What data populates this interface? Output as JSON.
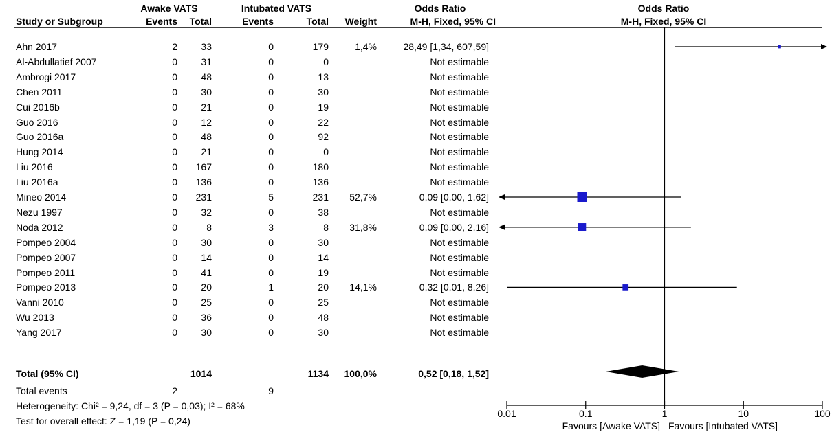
{
  "headers": {
    "group1": "Awake VATS",
    "group2": "Intubated VATS",
    "or_title_left": "Odds Ratio",
    "or_title_right": "Odds Ratio",
    "study_col": "Study or Subgroup",
    "events1": "Events",
    "total1": "Total",
    "events2": "Events",
    "total2": "Total",
    "weight": "Weight",
    "method_left": "M-H, Fixed, 95% CI",
    "method_right": "M-H, Fixed, 95% CI"
  },
  "studies": [
    {
      "study": "Ahn 2017",
      "e1": "2",
      "t1": "33",
      "e2": "0",
      "t2": "179",
      "weight": "1,4%",
      "ci": "28,49 [1,34, 607,59]"
    },
    {
      "study": "Al-Abdullatief 2007",
      "e1": "0",
      "t1": "31",
      "e2": "0",
      "t2": "0",
      "weight": "",
      "ci": "Not estimable"
    },
    {
      "study": "Ambrogi 2017",
      "e1": "0",
      "t1": "48",
      "e2": "0",
      "t2": "13",
      "weight": "",
      "ci": "Not estimable"
    },
    {
      "study": "Chen 2011",
      "e1": "0",
      "t1": "30",
      "e2": "0",
      "t2": "30",
      "weight": "",
      "ci": "Not estimable"
    },
    {
      "study": "Cui 2016b",
      "e1": "0",
      "t1": "21",
      "e2": "0",
      "t2": "19",
      "weight": "",
      "ci": "Not estimable"
    },
    {
      "study": "Guo 2016",
      "e1": "0",
      "t1": "12",
      "e2": "0",
      "t2": "22",
      "weight": "",
      "ci": "Not estimable"
    },
    {
      "study": "Guo 2016a",
      "e1": "0",
      "t1": "48",
      "e2": "0",
      "t2": "92",
      "weight": "",
      "ci": "Not estimable"
    },
    {
      "study": "Hung 2014",
      "e1": "0",
      "t1": "21",
      "e2": "0",
      "t2": "0",
      "weight": "",
      "ci": "Not estimable"
    },
    {
      "study": "Liu 2016",
      "e1": "0",
      "t1": "167",
      "e2": "0",
      "t2": "180",
      "weight": "",
      "ci": "Not estimable"
    },
    {
      "study": "Liu 2016a",
      "e1": "0",
      "t1": "136",
      "e2": "0",
      "t2": "136",
      "weight": "",
      "ci": "Not estimable"
    },
    {
      "study": "Mineo 2014",
      "e1": "0",
      "t1": "231",
      "e2": "5",
      "t2": "231",
      "weight": "52,7%",
      "ci": "0,09 [0,00, 1,62]"
    },
    {
      "study": "Nezu 1997",
      "e1": "0",
      "t1": "32",
      "e2": "0",
      "t2": "38",
      "weight": "",
      "ci": "Not estimable"
    },
    {
      "study": "Noda 2012",
      "e1": "0",
      "t1": "8",
      "e2": "3",
      "t2": "8",
      "weight": "31,8%",
      "ci": "0,09 [0,00, 2,16]"
    },
    {
      "study": "Pompeo 2004",
      "e1": "0",
      "t1": "30",
      "e2": "0",
      "t2": "30",
      "weight": "",
      "ci": "Not estimable"
    },
    {
      "study": "Pompeo 2007",
      "e1": "0",
      "t1": "14",
      "e2": "0",
      "t2": "14",
      "weight": "",
      "ci": "Not estimable"
    },
    {
      "study": "Pompeo 2011",
      "e1": "0",
      "t1": "41",
      "e2": "0",
      "t2": "19",
      "weight": "",
      "ci": "Not estimable"
    },
    {
      "study": "Pompeo 2013",
      "e1": "0",
      "t1": "20",
      "e2": "1",
      "t2": "20",
      "weight": "14,1%",
      "ci": "0,32 [0,01, 8,26]"
    },
    {
      "study": "Vanni 2010",
      "e1": "0",
      "t1": "25",
      "e2": "0",
      "t2": "25",
      "weight": "",
      "ci": "Not estimable"
    },
    {
      "study": "Wu 2013",
      "e1": "0",
      "t1": "36",
      "e2": "0",
      "t2": "48",
      "weight": "",
      "ci": "Not estimable"
    },
    {
      "study": "Yang 2017",
      "e1": "0",
      "t1": "30",
      "e2": "0",
      "t2": "30",
      "weight": "",
      "ci": "Not estimable"
    }
  ],
  "total": {
    "label": "Total (95% CI)",
    "t1": "1014",
    "t2": "1134",
    "weight": "100,0%",
    "ci": "0,52 [0,18, 1,52]"
  },
  "total_events": {
    "label": "Total events",
    "e1": "2",
    "e2": "9"
  },
  "heterogeneity": "Heterogeneity: Chi² = 9,24, df = 3 (P = 0,03); I² = 68%",
  "overall_effect": "Test for overall effect: Z = 1,19 (P = 0,24)",
  "axis": {
    "ticks": [
      "0.01",
      "0.1",
      "1",
      "10",
      "100"
    ],
    "favours_left": "Favours [Awake VATS]",
    "favours_right": "Favours [Intubated VATS]"
  },
  "colors": {
    "marker": "#1a1acc",
    "diamond": "#000000",
    "line": "#000000"
  },
  "chart_data": {
    "type": "forest",
    "scale": "log",
    "xlim": [
      0.01,
      100
    ],
    "reference_line": 1,
    "points": [
      {
        "study": "Ahn 2017",
        "or": 28.49,
        "lower": 1.34,
        "upper": 607.59,
        "weight": 1.4
      },
      {
        "study": "Mineo 2014",
        "or": 0.09,
        "lower": 0.0,
        "upper": 1.62,
        "weight": 52.7
      },
      {
        "study": "Noda 2012",
        "or": 0.09,
        "lower": 0.0,
        "upper": 2.16,
        "weight": 31.8
      },
      {
        "study": "Pompeo 2013",
        "or": 0.32,
        "lower": 0.01,
        "upper": 8.26,
        "weight": 14.1
      }
    ],
    "pooled": {
      "or": 0.52,
      "lower": 0.18,
      "upper": 1.52
    }
  }
}
